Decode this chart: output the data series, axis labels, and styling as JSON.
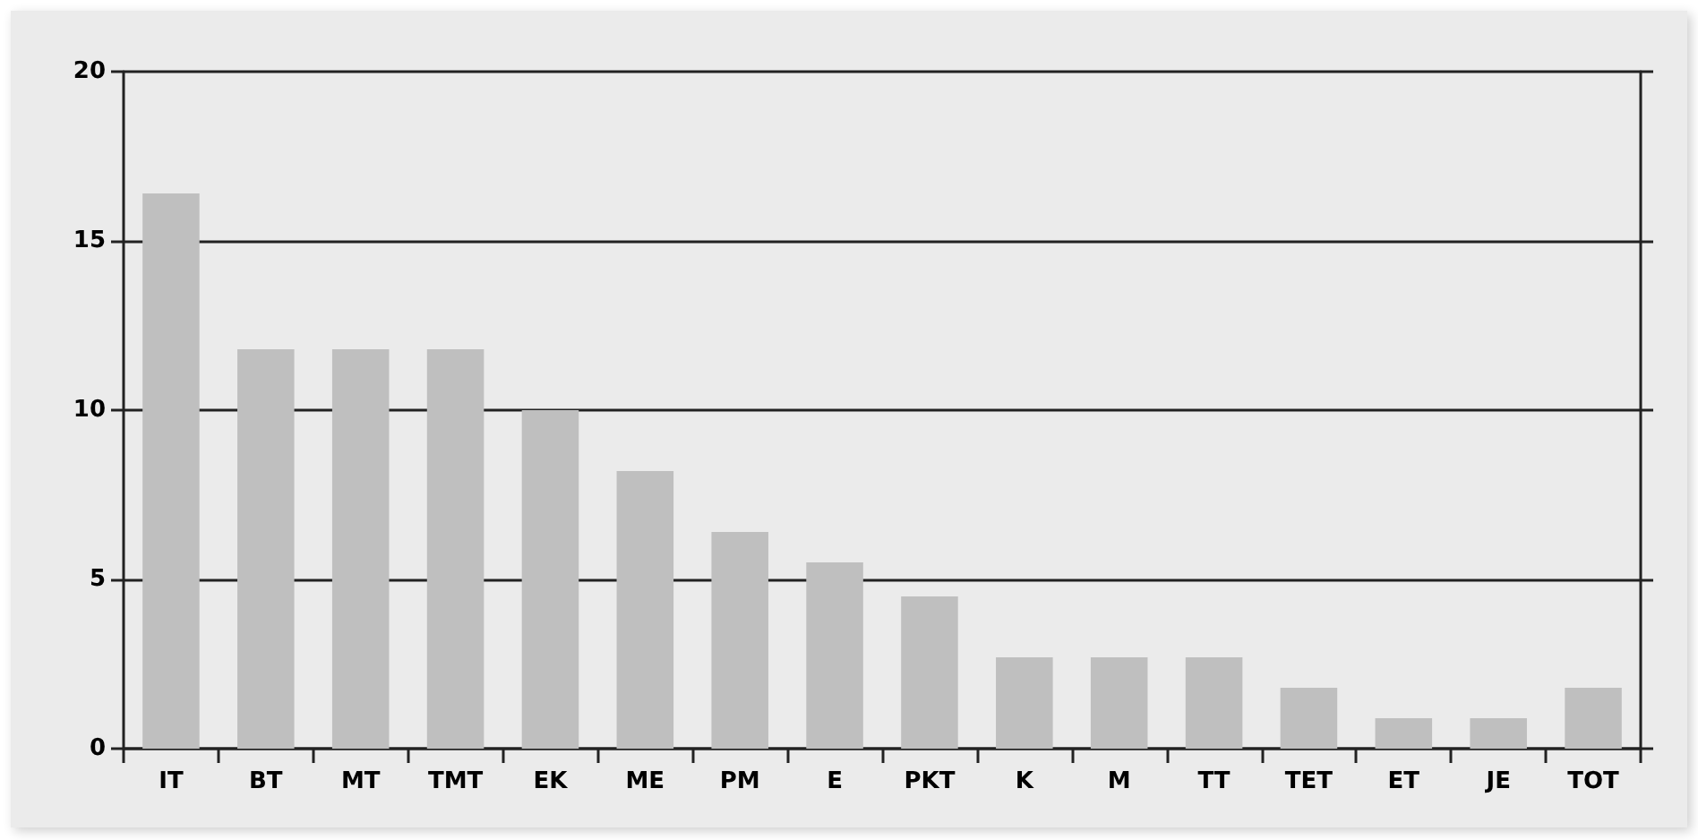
{
  "chart_data": {
    "type": "bar",
    "categories": [
      "IT",
      "BT",
      "MT",
      "TMT",
      "EK",
      "ME",
      "PM",
      "E",
      "PKT",
      "K",
      "M",
      "TT",
      "TET",
      "ET",
      "JE",
      "TOT"
    ],
    "values": [
      16.4,
      11.8,
      11.8,
      11.8,
      10.0,
      8.2,
      6.4,
      5.5,
      4.5,
      2.7,
      2.7,
      2.7,
      1.8,
      0.9,
      0.9,
      1.8
    ],
    "color": "#bfbfbf",
    "ylim": [
      0,
      20
    ],
    "yticks": [
      0,
      5,
      10,
      15,
      20
    ],
    "grid": "y"
  }
}
